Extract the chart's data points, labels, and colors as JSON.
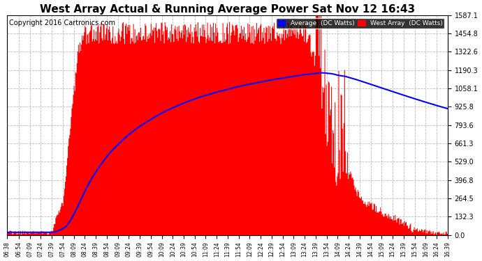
{
  "title": "West Array Actual & Running Average Power Sat Nov 12 16:43",
  "copyright": "Copyright 2016 Cartronics.com",
  "ylabel_ticks": [
    0.0,
    132.3,
    264.5,
    396.8,
    529.0,
    661.3,
    793.6,
    925.8,
    1058.1,
    1190.3,
    1322.6,
    1454.8,
    1587.1
  ],
  "ymax": 1587.1,
  "ymin": 0.0,
  "legend_avg_label": "Average  (DC Watts)",
  "legend_west_label": "West Array  (DC Watts)",
  "bg_color": "#ffffff",
  "grid_color": "#bbbbbb",
  "fill_color": "#ff0000",
  "avg_line_color": "#0000ff",
  "title_fontsize": 11,
  "copyright_fontsize": 7
}
